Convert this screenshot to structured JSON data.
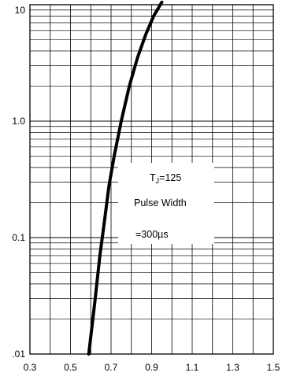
{
  "chart_data": {
    "type": "line",
    "title": "",
    "xlabel": "",
    "ylabel": "",
    "x_scale": "linear",
    "y_scale": "log",
    "xlim": [
      0.3,
      1.5
    ],
    "ylim": [
      0.01,
      10
    ],
    "x_ticks": [
      0.3,
      0.5,
      0.7,
      0.9,
      1.1,
      1.3,
      1.5
    ],
    "x_tick_labels": [
      "0.3",
      "0.5",
      "0.7",
      "0.9",
      "1.1",
      "1.3",
      "1.5"
    ],
    "y_ticks": [
      0.01,
      0.1,
      1,
      10
    ],
    "y_tick_labels": [
      ".01",
      "0.1",
      "1.0",
      "10"
    ],
    "grid": true,
    "legend": "none",
    "line_color": "#000000",
    "series": [
      {
        "x": [
          0.59,
          0.62,
          0.645,
          0.67,
          0.69,
          0.715,
          0.75,
          0.79,
          0.83,
          0.87,
          0.91,
          0.95
        ],
        "y": [
          0.01,
          0.028,
          0.07,
          0.15,
          0.28,
          0.5,
          1.0,
          2.0,
          3.5,
          5.5,
          8.0,
          10.5
        ]
      }
    ],
    "annotations": {
      "line1_main": "T",
      "line1_sub": "J",
      "line1_rest": "=125",
      "line2": "Pulse Width",
      "line3": "=300µs"
    }
  }
}
